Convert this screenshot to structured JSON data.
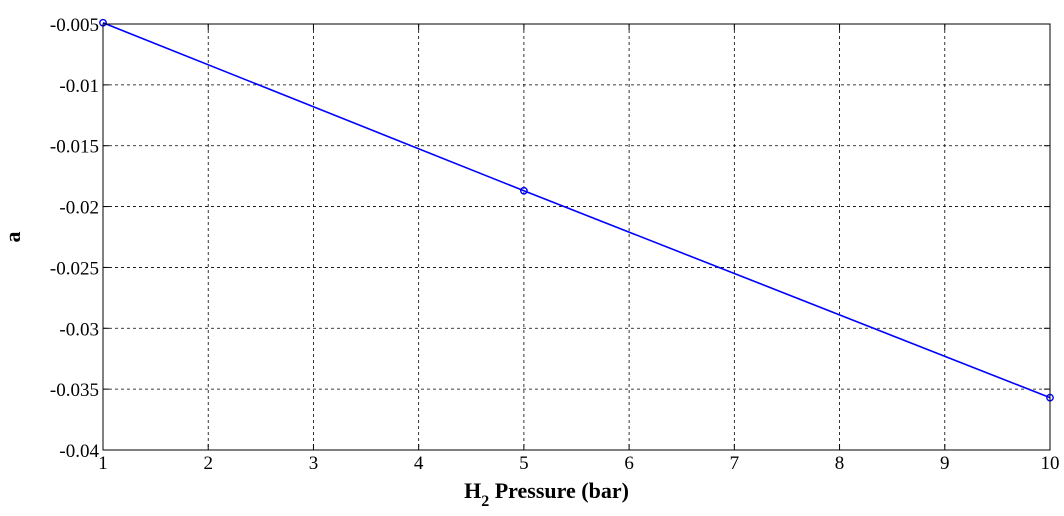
{
  "chart_data": {
    "type": "line",
    "xlabel": {
      "main": "H",
      "subscript": "2",
      "rest": " Pressure (bar)"
    },
    "ylabel": "a",
    "xlim": [
      1,
      10
    ],
    "ylim": [
      -0.04,
      -0.005
    ],
    "xticks": [
      1,
      2,
      3,
      4,
      5,
      6,
      7,
      8,
      9,
      10
    ],
    "xtick_labels": [
      "1",
      "2",
      "3",
      "4",
      "5",
      "6",
      "7",
      "8",
      "9",
      "10"
    ],
    "yticks": [
      -0.005,
      -0.01,
      -0.015,
      -0.02,
      -0.025,
      -0.03,
      -0.035,
      -0.04
    ],
    "ytick_labels": [
      "-0.005",
      "-0.01",
      "-0.015",
      "-0.02",
      "-0.025",
      "-0.03",
      "-0.035",
      "-0.04"
    ],
    "grid": true,
    "series": [
      {
        "color": "#0000ff",
        "marker": "circle",
        "x": [
          1,
          5,
          10
        ],
        "y": [
          -0.0049,
          -0.0187,
          -0.0357
        ]
      }
    ]
  }
}
